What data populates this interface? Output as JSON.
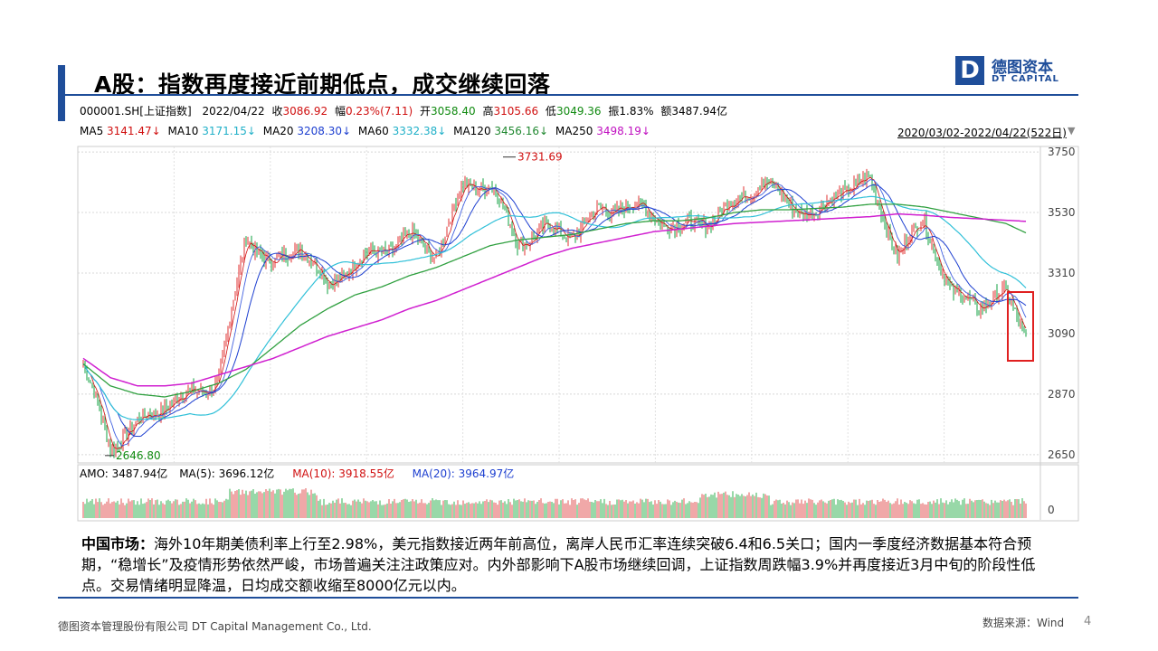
{
  "header": {
    "title": "A股：指数再度接近前期低点，成交继续回落"
  },
  "logo": {
    "mark": "D",
    "cn": "德图资本",
    "en": "DT CAPITAL",
    "color": "#1f4e9a"
  },
  "quote": {
    "code": "000001.SH[上证指数]",
    "date": "2022/04/22",
    "close_label": "收",
    "close": "3086.92",
    "change_label": "幅",
    "change": "0.23%(7.11)",
    "open_label": "开",
    "open": "3058.40",
    "high_label": "高",
    "high": "3105.66",
    "low_label": "低",
    "low": "3049.36",
    "amp_label": "振",
    "amp": "1.83%",
    "amount_label": "额",
    "amount": "3487.94亿"
  },
  "ma": [
    {
      "name": "MA5",
      "value": "3141.47↓",
      "color": "#d01010"
    },
    {
      "name": "MA10",
      "value": "3171.15↓",
      "color": "#20b0c8"
    },
    {
      "name": "MA20",
      "value": "3208.30↓",
      "color": "#1d3fd0"
    },
    {
      "name": "MA60",
      "value": "3332.38↓",
      "color": "#20c8d8"
    },
    {
      "name": "MA120",
      "value": "3456.16↓",
      "color": "#208830"
    },
    {
      "name": "MA250",
      "value": "3498.19↓",
      "color": "#c010c0"
    }
  ],
  "range": "2020/03/02-2022/04/22(522日)",
  "chart_data": {
    "type": "line",
    "y_ticks": [
      2650,
      2870,
      3090,
      3310,
      3530,
      3750
    ],
    "ylim": [
      2620,
      3770
    ],
    "annotations": {
      "high": "3731.69",
      "low": "2646.80"
    },
    "x_index": [
      0,
      15,
      30,
      45,
      60,
      75,
      90,
      105,
      120,
      135,
      150,
      165,
      180,
      195,
      210,
      225,
      240,
      255,
      270,
      285,
      300,
      315,
      330,
      345,
      360,
      375,
      390,
      405,
      420,
      435,
      450,
      465,
      480,
      495,
      510,
      521
    ],
    "close": [
      2980,
      2680,
      2760,
      2830,
      2870,
      2920,
      3450,
      3330,
      3420,
      3260,
      3350,
      3390,
      3440,
      3380,
      3620,
      3640,
      3420,
      3470,
      3450,
      3530,
      3560,
      3520,
      3470,
      3500,
      3560,
      3650,
      3560,
      3520,
      3620,
      3640,
      3380,
      3500,
      3230,
      3200,
      3230,
      3086
    ],
    "ma250": [
      3000,
      2930,
      2900,
      2900,
      2910,
      2940,
      2970,
      3000,
      3040,
      3080,
      3110,
      3140,
      3180,
      3210,
      3250,
      3290,
      3330,
      3370,
      3400,
      3420,
      3440,
      3460,
      3470,
      3480,
      3490,
      3495,
      3500,
      3505,
      3510,
      3515,
      3525,
      3520,
      3512,
      3507,
      3502,
      3498
    ],
    "ma120": [
      2980,
      2900,
      2870,
      2860,
      2880,
      2910,
      2960,
      3040,
      3120,
      3180,
      3230,
      3260,
      3300,
      3330,
      3370,
      3410,
      3430,
      3440,
      3450,
      3470,
      3490,
      3500,
      3500,
      3510,
      3530,
      3540,
      3540,
      3545,
      3550,
      3560,
      3560,
      3550,
      3530,
      3510,
      3490,
      3456
    ]
  },
  "volume": {
    "amo_label": "AMO:",
    "amo": "3487.94亿",
    "ma5_label": "MA(5):",
    "ma5": "3696.12亿",
    "ma10_label": "MA(10):",
    "ma10": "3918.55亿",
    "ma20_label": "MA(20):",
    "ma20": "3964.97亿",
    "zero_label": "0"
  },
  "commentary": {
    "lead": "中国市场：",
    "text": "海外10年期美债利率上行至2.98%，美元指数接近两年前高位，离岸人民币汇率连续突破6.4和6.5关口；国内一季度经济数据基本符合预期，“稳增长”及疫情形势依然严峻，市场普遍关注注政策应对。内外部影响下A股市场继续回调，上证指数周跌幅3.9%并再度接近3月中旬的阶段性低点。交易情绪明显降温，日均成交额收缩至8000亿元以内。"
  },
  "footer": {
    "company": "德图资本管理股份有限公司 DT Capital Management Co., Ltd.",
    "source": "数据来源：Wind",
    "page": "4"
  }
}
